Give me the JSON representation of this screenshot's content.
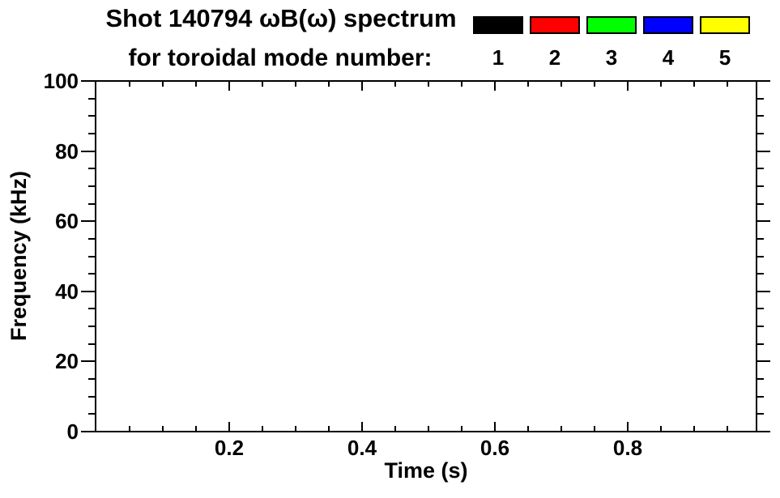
{
  "header": {
    "title_line1": "Shot 140794 ωB(ω) spectrum",
    "title_line2": "for toroidal mode number:"
  },
  "legend": {
    "entries": [
      {
        "mode": "1",
        "color": "#000000"
      },
      {
        "mode": "2",
        "color": "#ff0000"
      },
      {
        "mode": "3",
        "color": "#00ff00"
      },
      {
        "mode": "4",
        "color": "#0000ff"
      },
      {
        "mode": "5",
        "color": "#ffff00"
      }
    ]
  },
  "chart_data": {
    "type": "spectrogram",
    "title": "Shot 140794 ωB(ω) spectrum for toroidal mode number: 1 2 3 4 5",
    "xlabel": "Time (s)",
    "ylabel": "Frequency (kHz)",
    "xlim": [
      0,
      1.0
    ],
    "ylim": [
      0,
      100
    ],
    "x_major_ticks": [
      0.2,
      0.4,
      0.6,
      0.8
    ],
    "x_tick_labels": [
      "0.2",
      "0.4",
      "0.6",
      "0.8"
    ],
    "x_minor_tick_interval": 0.05,
    "y_major_ticks": [
      0,
      20,
      40,
      60,
      80,
      100
    ],
    "y_tick_labels": [
      "0",
      "20",
      "40",
      "60",
      "80",
      "100"
    ],
    "y_minor_tick_interval": 5,
    "grid": false,
    "legend_position": "top-right",
    "axis_color": "#000000",
    "background_color": "#ffffff",
    "series": [
      {
        "name": "1",
        "color": "#000000",
        "points": []
      },
      {
        "name": "2",
        "color": "#ff0000",
        "points": []
      },
      {
        "name": "3",
        "color": "#00ff00",
        "points": []
      },
      {
        "name": "4",
        "color": "#0000ff",
        "points": []
      },
      {
        "name": "5",
        "color": "#ffff00",
        "points": []
      }
    ]
  }
}
